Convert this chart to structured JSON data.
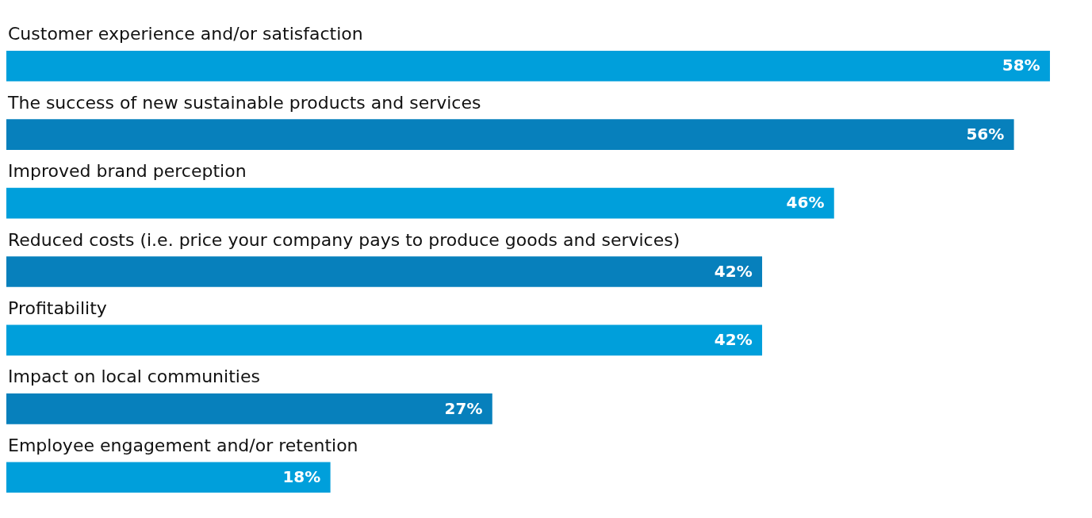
{
  "chart_data": {
    "type": "bar",
    "orientation": "horizontal",
    "categories": [
      "Customer experience and/or satisfaction",
      "The success of new sustainable products and services",
      "Improved brand perception",
      "Reduced costs (i.e. price your company pays to produce goods and services)",
      "Profitability",
      "Impact on local communities",
      "Employee engagement and/or retention"
    ],
    "values": [
      58,
      56,
      46,
      42,
      42,
      27,
      18
    ],
    "colors": [
      "#009fdb",
      "#0780bc",
      "#009fdb",
      "#0780bc",
      "#009fdb",
      "#0780bc",
      "#009fdb"
    ],
    "data_labels": true,
    "value_labels": [
      "58%",
      "56%",
      "46%",
      "42%",
      "42%",
      "27%",
      "18%"
    ],
    "grid": false,
    "legend": false
  }
}
